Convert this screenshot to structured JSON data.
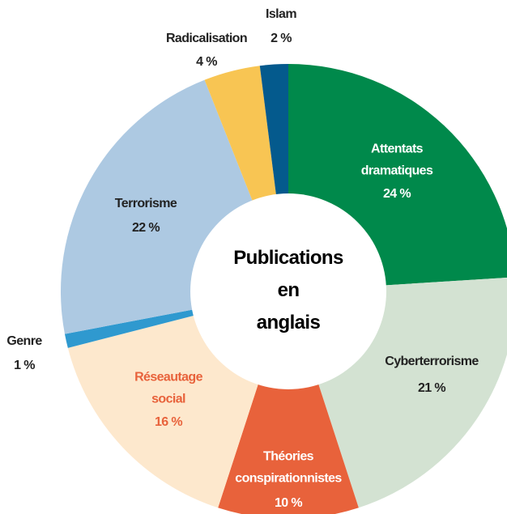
{
  "chart_data": {
    "type": "donut",
    "center_title": "Publications en anglais",
    "categories": [
      "Attentats dramatiques",
      "Cyberterrorisme",
      "Théories conspirationnistes",
      "Réseautage social",
      "Genre",
      "Terrorisme",
      "Radicalisation",
      "Islam"
    ],
    "values": [
      24,
      21,
      10,
      16,
      1,
      22,
      4,
      2
    ],
    "value_labels": [
      "24 %",
      "21 %",
      "10 %",
      "16 %",
      "1 %",
      "22 %",
      "4 %",
      "2 %"
    ],
    "colors": [
      "#00894b",
      "#d3e2d2",
      "#e8623b",
      "#fde8cd",
      "#2f99cf",
      "#adc9e2",
      "#f8c553",
      "#045a8d"
    ]
  }
}
